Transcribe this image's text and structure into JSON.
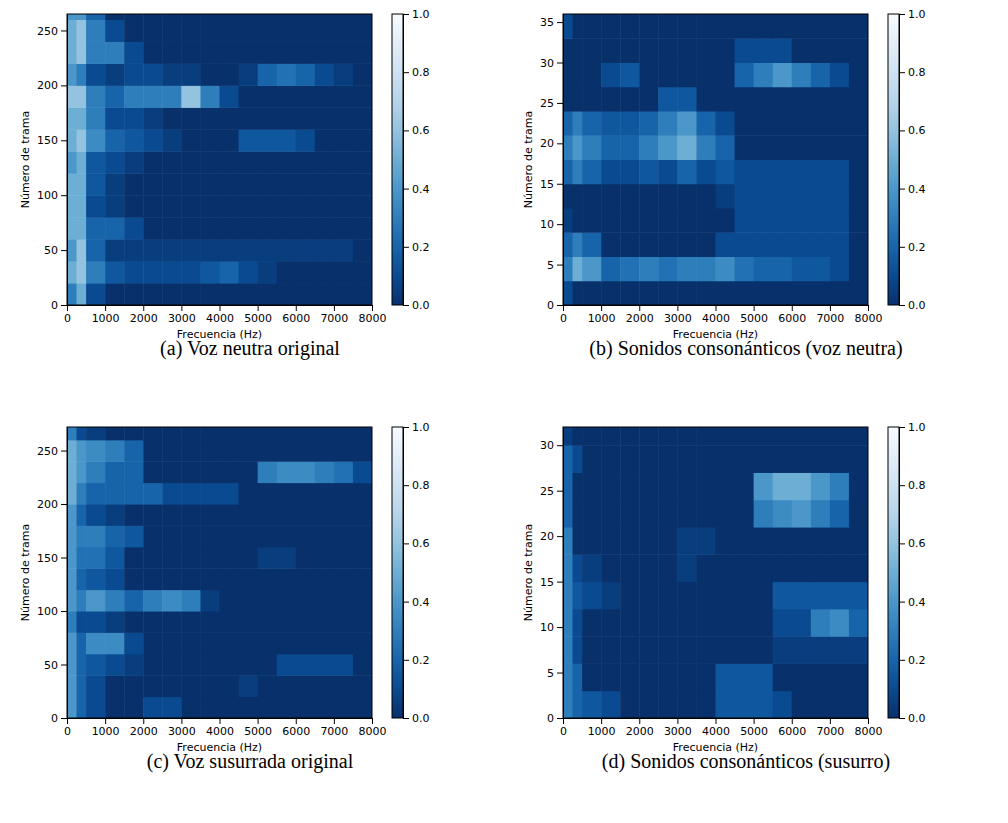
{
  "chart_data": [
    {
      "type": "heatmap",
      "title": "(a) Voz neutra original",
      "x_label": "Frecuencia (Hz)",
      "y_label": "Número de trama",
      "xlim": [
        0,
        8000
      ],
      "xticks": [
        0,
        1000,
        2000,
        3000,
        4000,
        5000,
        6000,
        7000,
        8000
      ],
      "ylim": [
        0,
        265
      ],
      "yticks": [
        0,
        50,
        100,
        150,
        200,
        250
      ],
      "x_edges": [
        0,
        250,
        500,
        1000,
        1500,
        2000,
        2500,
        3000,
        3500,
        4000,
        4500,
        5000,
        5500,
        6000,
        6500,
        7000,
        7500,
        8000
      ],
      "y_edges": [
        0,
        20,
        40,
        60,
        80,
        100,
        120,
        140,
        160,
        180,
        200,
        220,
        240,
        260,
        265
      ],
      "cells": [
        [
          0.3,
          0.5,
          0.1,
          0,
          0,
          0,
          0,
          0,
          0,
          0,
          0,
          0,
          0,
          0,
          0,
          0,
          0
        ],
        [
          0.5,
          0.6,
          0.3,
          0.15,
          0.1,
          0.1,
          0.1,
          0.1,
          0.15,
          0.2,
          0.1,
          0.05,
          0,
          0,
          0,
          0,
          0
        ],
        [
          0.4,
          0.6,
          0.2,
          0.05,
          0.05,
          0.05,
          0.05,
          0.05,
          0.05,
          0.05,
          0.05,
          0.05,
          0.05,
          0.05,
          0.05,
          0.05,
          0
        ],
        [
          0.5,
          0.5,
          0.2,
          0.2,
          0.1,
          0,
          0,
          0,
          0,
          0,
          0,
          0,
          0,
          0,
          0,
          0,
          0
        ],
        [
          0.5,
          0.5,
          0.1,
          0.05,
          0,
          0,
          0,
          0,
          0,
          0,
          0,
          0,
          0,
          0,
          0,
          0,
          0
        ],
        [
          0.5,
          0.5,
          0.15,
          0.05,
          0,
          0,
          0,
          0,
          0,
          0,
          0,
          0,
          0,
          0,
          0,
          0,
          0
        ],
        [
          0.4,
          0.5,
          0.15,
          0.1,
          0.05,
          0,
          0,
          0,
          0,
          0,
          0,
          0,
          0,
          0,
          0,
          0,
          0
        ],
        [
          0.5,
          0.6,
          0.35,
          0.2,
          0.15,
          0.1,
          0.05,
          0,
          0,
          0,
          0.15,
          0.15,
          0.15,
          0.1,
          0,
          0,
          0
        ],
        [
          0.5,
          0.5,
          0.3,
          0.1,
          0.1,
          0.05,
          0,
          0,
          0,
          0,
          0,
          0,
          0,
          0,
          0,
          0,
          0
        ],
        [
          0.6,
          0.6,
          0.3,
          0.2,
          0.3,
          0.3,
          0.3,
          0.6,
          0.3,
          0.1,
          0,
          0,
          0,
          0,
          0,
          0,
          0
        ],
        [
          0.4,
          0.3,
          0.1,
          0.05,
          0.1,
          0.1,
          0.05,
          0.05,
          0,
          0,
          0.05,
          0.2,
          0.25,
          0.2,
          0.1,
          0.05,
          0
        ],
        [
          0.5,
          0.6,
          0.3,
          0.3,
          0.1,
          0,
          0,
          0,
          0,
          0,
          0,
          0,
          0,
          0,
          0,
          0,
          0
        ],
        [
          0.5,
          0.6,
          0.3,
          0.1,
          0,
          0,
          0,
          0,
          0,
          0,
          0,
          0,
          0,
          0,
          0,
          0,
          0
        ],
        [
          0.4,
          0.4,
          0.2,
          0,
          0,
          0,
          0,
          0,
          0,
          0,
          0,
          0,
          0,
          0,
          0,
          0,
          0
        ]
      ],
      "colorbar_range": [
        0,
        1
      ],
      "colorbar_ticks": [
        {
          "value": 0,
          "label": "0.0"
        },
        {
          "value": 0.2,
          "label": "0.2"
        },
        {
          "value": 0.4,
          "label": "0.4"
        },
        {
          "value": 0.6,
          "label": "0.6"
        },
        {
          "value": 0.8,
          "label": "0.8"
        },
        {
          "value": 1,
          "label": "1.0"
        }
      ]
    },
    {
      "type": "heatmap",
      "title": "(b) Sonidos consonánticos (voz neutra)",
      "x_label": "Frecuencia (Hz)",
      "y_label": "Número de trama",
      "xlim": [
        0,
        8000
      ],
      "xticks": [
        0,
        1000,
        2000,
        3000,
        4000,
        5000,
        6000,
        7000,
        8000
      ],
      "ylim": [
        0,
        36
      ],
      "yticks": [
        0,
        5,
        10,
        15,
        20,
        25,
        30,
        35
      ],
      "x_edges": [
        0,
        250,
        500,
        1000,
        1500,
        2000,
        2500,
        3000,
        3500,
        4000,
        4500,
        5000,
        5500,
        6000,
        6500,
        7000,
        7500,
        8000
      ],
      "y_edges": [
        0,
        3,
        6,
        9,
        12,
        15,
        18,
        21,
        24,
        27,
        30,
        33,
        36
      ],
      "cells": [
        [
          0.1,
          0,
          0,
          0,
          0,
          0,
          0,
          0,
          0,
          0,
          0,
          0,
          0,
          0,
          0,
          0,
          0
        ],
        [
          0.3,
          0.5,
          0.4,
          0.2,
          0.25,
          0.3,
          0.25,
          0.3,
          0.3,
          0.35,
          0.25,
          0.2,
          0.2,
          0.15,
          0.15,
          0.1,
          0
        ],
        [
          0.2,
          0.3,
          0.2,
          0,
          0,
          0,
          0,
          0,
          0,
          0.1,
          0.1,
          0.1,
          0.1,
          0.1,
          0.1,
          0.1,
          0
        ],
        [
          0.05,
          0,
          0,
          0,
          0,
          0,
          0,
          0,
          0,
          0,
          0.1,
          0.1,
          0.1,
          0.1,
          0.1,
          0.1,
          0
        ],
        [
          0,
          0,
          0,
          0,
          0,
          0,
          0,
          0,
          0,
          0.05,
          0.1,
          0.1,
          0.1,
          0.1,
          0.1,
          0.1,
          0
        ],
        [
          0.2,
          0.3,
          0.2,
          0.1,
          0.1,
          0.15,
          0.1,
          0.2,
          0.1,
          0.15,
          0.1,
          0.1,
          0.1,
          0.1,
          0.1,
          0.1,
          0
        ],
        [
          0.3,
          0.4,
          0.3,
          0.2,
          0.2,
          0.3,
          0.4,
          0.5,
          0.3,
          0.2,
          0,
          0,
          0,
          0,
          0,
          0,
          0
        ],
        [
          0.2,
          0.3,
          0.2,
          0.15,
          0.15,
          0.2,
          0.3,
          0.4,
          0.2,
          0.1,
          0,
          0,
          0,
          0,
          0,
          0,
          0
        ],
        [
          0,
          0,
          0,
          0,
          0,
          0,
          0.15,
          0.15,
          0,
          0,
          0,
          0,
          0,
          0,
          0,
          0,
          0
        ],
        [
          0,
          0,
          0,
          0.1,
          0.15,
          0,
          0,
          0,
          0,
          0,
          0.2,
          0.3,
          0.4,
          0.3,
          0.2,
          0.1,
          0
        ],
        [
          0,
          0,
          0,
          0,
          0,
          0,
          0,
          0,
          0,
          0,
          0.1,
          0.1,
          0.1,
          0,
          0,
          0,
          0
        ],
        [
          0.1,
          0,
          0,
          0,
          0,
          0,
          0,
          0,
          0,
          0,
          0,
          0,
          0,
          0,
          0,
          0,
          0
        ]
      ],
      "colorbar_range": [
        0,
        1
      ],
      "colorbar_ticks": [
        {
          "value": 0,
          "label": "0.0"
        },
        {
          "value": 0.2,
          "label": "0.2"
        },
        {
          "value": 0.4,
          "label": "0.4"
        },
        {
          "value": 0.6,
          "label": "0.6"
        },
        {
          "value": 0.8,
          "label": "0.8"
        },
        {
          "value": 1,
          "label": "1.0"
        }
      ]
    },
    {
      "type": "heatmap",
      "title": "(c) Voz susurrada original",
      "x_label": "Frecuencia (Hz)",
      "y_label": "Número de trama",
      "xlim": [
        0,
        8000
      ],
      "xticks": [
        0,
        1000,
        2000,
        3000,
        4000,
        5000,
        6000,
        7000,
        8000
      ],
      "ylim": [
        0,
        272
      ],
      "yticks": [
        0,
        50,
        100,
        150,
        200,
        250
      ],
      "x_edges": [
        0,
        250,
        500,
        1000,
        1500,
        2000,
        2500,
        3000,
        3500,
        4000,
        4500,
        5000,
        5500,
        6000,
        6500,
        7000,
        7500,
        8000
      ],
      "y_edges": [
        0,
        20,
        40,
        60,
        80,
        100,
        120,
        140,
        160,
        180,
        200,
        220,
        240,
        260,
        272
      ],
      "cells": [
        [
          0.4,
          0.2,
          0.1,
          0,
          0,
          0.1,
          0.1,
          0,
          0,
          0,
          0,
          0,
          0,
          0,
          0,
          0,
          0
        ],
        [
          0.4,
          0.2,
          0.1,
          0,
          0,
          0,
          0,
          0,
          0,
          0,
          0.05,
          0,
          0,
          0,
          0,
          0,
          0
        ],
        [
          0.4,
          0.2,
          0.15,
          0.1,
          0.05,
          0,
          0,
          0,
          0,
          0,
          0,
          0,
          0.1,
          0.1,
          0.1,
          0.1,
          0
        ],
        [
          0.4,
          0.2,
          0.35,
          0.35,
          0.1,
          0,
          0,
          0,
          0,
          0,
          0,
          0,
          0,
          0,
          0,
          0,
          0
        ],
        [
          0.3,
          0.1,
          0.1,
          0.05,
          0,
          0,
          0,
          0,
          0,
          0,
          0,
          0,
          0,
          0,
          0,
          0,
          0
        ],
        [
          0.4,
          0.3,
          0.4,
          0.3,
          0.2,
          0.3,
          0.35,
          0.3,
          0.05,
          0,
          0,
          0,
          0,
          0,
          0,
          0,
          0
        ],
        [
          0.4,
          0.2,
          0.15,
          0.1,
          0,
          0,
          0,
          0,
          0,
          0,
          0,
          0,
          0,
          0,
          0,
          0,
          0
        ],
        [
          0.4,
          0.25,
          0.25,
          0.15,
          0,
          0,
          0,
          0,
          0,
          0,
          0,
          0.05,
          0.05,
          0,
          0,
          0,
          0
        ],
        [
          0.4,
          0.3,
          0.3,
          0.2,
          0.15,
          0,
          0,
          0,
          0,
          0,
          0,
          0,
          0,
          0,
          0,
          0,
          0
        ],
        [
          0.4,
          0.2,
          0.1,
          0.05,
          0,
          0,
          0,
          0,
          0,
          0,
          0,
          0,
          0,
          0,
          0,
          0,
          0
        ],
        [
          0.5,
          0.3,
          0.2,
          0.2,
          0.2,
          0.2,
          0.1,
          0.1,
          0.1,
          0.1,
          0,
          0,
          0,
          0,
          0,
          0,
          0
        ],
        [
          0.5,
          0.4,
          0.3,
          0.2,
          0.2,
          0,
          0,
          0,
          0,
          0,
          0,
          0.3,
          0.35,
          0.35,
          0.3,
          0.25,
          0.1
        ],
        [
          0.5,
          0.4,
          0.35,
          0.3,
          0.2,
          0,
          0,
          0,
          0,
          0,
          0,
          0,
          0,
          0,
          0,
          0,
          0
        ],
        [
          0.3,
          0.1,
          0.05,
          0,
          0,
          0,
          0,
          0,
          0,
          0,
          0,
          0,
          0,
          0,
          0,
          0,
          0
        ]
      ],
      "colorbar_range": [
        0,
        1
      ],
      "colorbar_ticks": [
        {
          "value": 0,
          "label": "0.0"
        },
        {
          "value": 0.2,
          "label": "0.2"
        },
        {
          "value": 0.4,
          "label": "0.4"
        },
        {
          "value": 0.6,
          "label": "0.6"
        },
        {
          "value": 0.8,
          "label": "0.8"
        },
        {
          "value": 1,
          "label": "1.0"
        }
      ]
    },
    {
      "type": "heatmap",
      "title": "(d) Sonidos consonánticos (susurro)",
      "x_label": "Frecuencia (Hz)",
      "y_label": "Número de trama",
      "xlim": [
        0,
        8000
      ],
      "xticks": [
        0,
        1000,
        2000,
        3000,
        4000,
        5000,
        6000,
        7000,
        8000
      ],
      "ylim": [
        0,
        32
      ],
      "yticks": [
        0,
        5,
        10,
        15,
        20,
        25,
        30
      ],
      "x_edges": [
        0,
        250,
        500,
        1000,
        1500,
        2000,
        2500,
        3000,
        3500,
        4000,
        4500,
        5000,
        5500,
        6000,
        6500,
        7000,
        7500,
        8000
      ],
      "y_edges": [
        0,
        3,
        6,
        9,
        12,
        15,
        18,
        21,
        24,
        27,
        30,
        32
      ],
      "cells": [
        [
          0.3,
          0.2,
          0.15,
          0.1,
          0,
          0,
          0,
          0,
          0,
          0.15,
          0.15,
          0.15,
          0.1,
          0,
          0,
          0,
          0
        ],
        [
          0.3,
          0.2,
          0,
          0,
          0,
          0,
          0,
          0,
          0,
          0.15,
          0.15,
          0.15,
          0,
          0,
          0,
          0,
          0
        ],
        [
          0.3,
          0.1,
          0,
          0,
          0,
          0,
          0,
          0,
          0,
          0,
          0,
          0,
          0.05,
          0.05,
          0.05,
          0.05,
          0.05
        ],
        [
          0.3,
          0.1,
          0,
          0,
          0,
          0,
          0,
          0,
          0,
          0,
          0,
          0,
          0.1,
          0.1,
          0.3,
          0.35,
          0.2
        ],
        [
          0.3,
          0.15,
          0.1,
          0.05,
          0,
          0,
          0,
          0,
          0,
          0,
          0,
          0,
          0.15,
          0.15,
          0.15,
          0.15,
          0.15
        ],
        [
          0.3,
          0.1,
          0.05,
          0,
          0,
          0,
          0,
          0.05,
          0,
          0,
          0,
          0,
          0,
          0,
          0,
          0,
          0
        ],
        [
          0.3,
          0,
          0,
          0,
          0,
          0,
          0,
          0.05,
          0.05,
          0,
          0,
          0,
          0,
          0,
          0,
          0,
          0
        ],
        [
          0.2,
          0,
          0,
          0,
          0,
          0,
          0,
          0,
          0,
          0,
          0,
          0.3,
          0.35,
          0.4,
          0.3,
          0.2,
          0
        ],
        [
          0.2,
          0,
          0,
          0,
          0,
          0,
          0,
          0,
          0,
          0,
          0,
          0.4,
          0.5,
          0.5,
          0.4,
          0.3,
          0
        ],
        [
          0.2,
          0.1,
          0,
          0,
          0,
          0,
          0,
          0,
          0,
          0,
          0,
          0,
          0,
          0,
          0,
          0,
          0
        ],
        [
          0.05,
          0,
          0,
          0,
          0,
          0,
          0,
          0,
          0,
          0,
          0,
          0,
          0,
          0,
          0,
          0,
          0
        ]
      ],
      "colorbar_range": [
        0,
        1
      ],
      "colorbar_ticks": [
        {
          "value": 0,
          "label": "0.0"
        },
        {
          "value": 0.2,
          "label": "0.2"
        },
        {
          "value": 0.4,
          "label": "0.4"
        },
        {
          "value": 0.6,
          "label": "0.6"
        },
        {
          "value": 0.8,
          "label": "0.8"
        },
        {
          "value": 1,
          "label": "1.0"
        }
      ]
    }
  ]
}
